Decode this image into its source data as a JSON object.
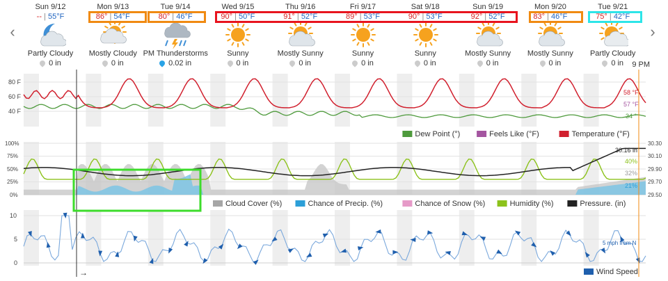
{
  "nav": {
    "prev": "‹",
    "next": "›"
  },
  "days": [
    {
      "name": "Sun 9/12",
      "hi": "--",
      "lo": "55°F",
      "icon": "partly-cloudy-night-icon",
      "condition": "Partly Cloudy",
      "precip": "0 in",
      "drop": "#cccccc"
    },
    {
      "name": "Mon 9/13",
      "hi": "86°",
      "lo": "54°F",
      "icon": "mostly-cloudy-icon",
      "condition": "Mostly Cloudy",
      "precip": "0 in",
      "drop": "#cccccc"
    },
    {
      "name": "Tue 9/14",
      "hi": "80°",
      "lo": "46°F",
      "icon": "thunderstorm-icon",
      "condition": "PM Thunderstorms",
      "precip": "0.02 in",
      "drop": "#29a3e6"
    },
    {
      "name": "Wed 9/15",
      "hi": "90°",
      "lo": "50°F",
      "icon": "sunny-icon",
      "condition": "Sunny",
      "precip": "0 in",
      "drop": "#cccccc"
    },
    {
      "name": "Thu 9/16",
      "hi": "91°",
      "lo": "52°F",
      "icon": "mostly-sunny-icon",
      "condition": "Mostly Sunny",
      "precip": "0 in",
      "drop": "#cccccc"
    },
    {
      "name": "Fri 9/17",
      "hi": "89°",
      "lo": "53°F",
      "icon": "sunny-icon",
      "condition": "Sunny",
      "precip": "0 in",
      "drop": "#cccccc"
    },
    {
      "name": "Sat 9/18",
      "hi": "90°",
      "lo": "53°F",
      "icon": "sunny-icon",
      "condition": "Sunny",
      "precip": "0 in",
      "drop": "#cccccc"
    },
    {
      "name": "Sun 9/19",
      "hi": "92°",
      "lo": "52°F",
      "icon": "mostly-sunny-icon",
      "condition": "Mostly Sunny",
      "precip": "0 in",
      "drop": "#cccccc"
    },
    {
      "name": "Mon 9/20",
      "hi": "83°",
      "lo": "46°F",
      "icon": "mostly-sunny-icon",
      "condition": "Mostly Sunny",
      "precip": "0 in",
      "drop": "#cccccc"
    },
    {
      "name": "Tue 9/21",
      "hi": "75°",
      "lo": "42°F",
      "icon": "partly-cloudy-icon",
      "condition": "Partly Cloudy",
      "precip": "0 in",
      "drop": "#cccccc"
    }
  ],
  "time_marker": "9 PM",
  "highlights": {
    "orange": "#f08a12",
    "red": "#e8141e",
    "cyan": "#2de5e8",
    "green": "#3ddc2b"
  },
  "temp_chart": {
    "y_ticks": [
      "80 F",
      "60 F",
      "40 F"
    ],
    "end_labels": {
      "temperature": "58 °F",
      "feels_like": "57 °F",
      "dew_point": "34 °"
    },
    "legend": [
      {
        "label": "Dew Point (°)",
        "color": "#4e9a3c"
      },
      {
        "label": "Feels Like (°F)",
        "color": "#a455a0"
      },
      {
        "label": "Temperature (°F)",
        "color": "#d1202e"
      }
    ]
  },
  "atmos_chart": {
    "y_ticks_left": [
      "100%",
      "75%",
      "50%",
      "25%",
      "0%"
    ],
    "y_ticks_right": [
      "30.30",
      "30.10",
      "29.90",
      "29.70",
      "29.50"
    ],
    "end_labels": {
      "pressure": "30.16 in",
      "humidity": "40%",
      "cloud": "32%",
      "precip": "21%"
    },
    "legend": [
      {
        "label": "Cloud Cover (%)",
        "color": "#a6a6a6"
      },
      {
        "label": "Chance of Precip. (%)",
        "color": "#2c9fd8"
      },
      {
        "label": "Chance of Snow (%)",
        "color": "#e69ac8"
      },
      {
        "label": "Humidity (%)",
        "color": "#8cc21b"
      },
      {
        "label": "Pressure. (in)",
        "color": "#222222"
      }
    ]
  },
  "wind_chart": {
    "y_ticks": [
      "10",
      "5",
      "0"
    ],
    "end_label": "5 mph from N",
    "legend": [
      {
        "label": "Wind Speed",
        "color": "#1f5fad"
      }
    ]
  },
  "cursor_arrow": "→",
  "colors": {
    "temperature": "#d1202e",
    "dew_point": "#4e9a3c",
    "humidity": "#8cc21b",
    "pressure": "#222222",
    "cloud": "#c4c4c4",
    "precip": "#7cc4e4",
    "wind": "#2a6fc2",
    "sun": "#f6a21e"
  }
}
